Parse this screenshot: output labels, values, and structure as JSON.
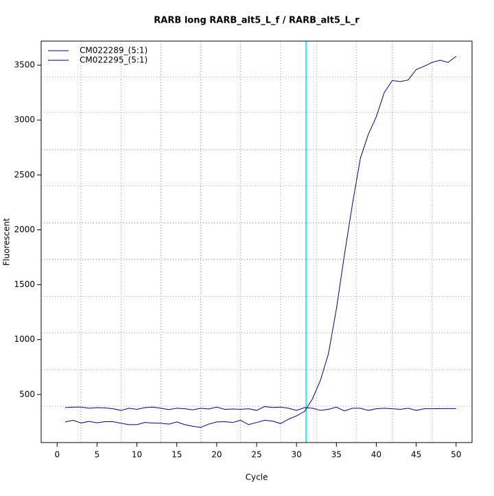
{
  "chart_data": {
    "type": "line",
    "title": "RARB long RARB_alt5_L_f / RARB_alt5_L_r",
    "xlabel": "Cycle",
    "ylabel": "Fluorescent",
    "x": [
      1,
      2,
      3,
      4,
      5,
      6,
      7,
      8,
      9,
      10,
      11,
      12,
      13,
      14,
      15,
      16,
      17,
      18,
      19,
      20,
      21,
      22,
      23,
      24,
      25,
      26,
      27,
      28,
      29,
      30,
      31,
      32,
      33,
      34,
      35,
      36,
      37,
      38,
      39,
      40,
      41,
      42,
      43,
      44,
      45,
      46,
      47,
      48,
      49,
      50
    ],
    "series": [
      {
        "name": "CM022289_(5:1)",
        "color": "#000080",
        "values": [
          250,
          265,
          240,
          255,
          242,
          252,
          252,
          238,
          225,
          225,
          245,
          240,
          238,
          230,
          250,
          225,
          210,
          200,
          230,
          250,
          252,
          245,
          265,
          225,
          245,
          265,
          258,
          235,
          275,
          305,
          345,
          460,
          630,
          870,
          1280,
          1770,
          2230,
          2650,
          2870,
          3030,
          3250,
          3360,
          3350,
          3365,
          3460,
          3490,
          3525,
          3545,
          3525,
          3580
        ]
      },
      {
        "name": "CM022295_(5:1)",
        "color": "#000080",
        "values": [
          380,
          385,
          385,
          375,
          380,
          378,
          370,
          355,
          375,
          365,
          380,
          385,
          375,
          362,
          375,
          370,
          360,
          375,
          368,
          385,
          365,
          368,
          365,
          370,
          355,
          390,
          382,
          385,
          375,
          355,
          380,
          375,
          355,
          365,
          385,
          350,
          375,
          375,
          355,
          370,
          375,
          370,
          365,
          375,
          355,
          370,
          370,
          372,
          372,
          372
        ]
      }
    ],
    "xlim": [
      -2,
      52
    ],
    "xticks": [
      0,
      5,
      10,
      15,
      20,
      25,
      30,
      35,
      40,
      45,
      50
    ],
    "ylim": [
      62,
      3719
    ],
    "yticks": [
      500,
      1000,
      1500,
      2000,
      2500,
      3000,
      3500
    ],
    "xgrid": [
      3,
      8,
      13,
      18,
      23,
      28,
      32.5,
      37.5,
      42,
      47
    ],
    "ygrid": [
      394,
      725,
      1062,
      1394,
      1731,
      2062,
      2400,
      2731,
      3069,
      3394
    ],
    "threshold_cycle": 31.2,
    "threshold_color": "#00e5ee",
    "legend": "top-left"
  }
}
